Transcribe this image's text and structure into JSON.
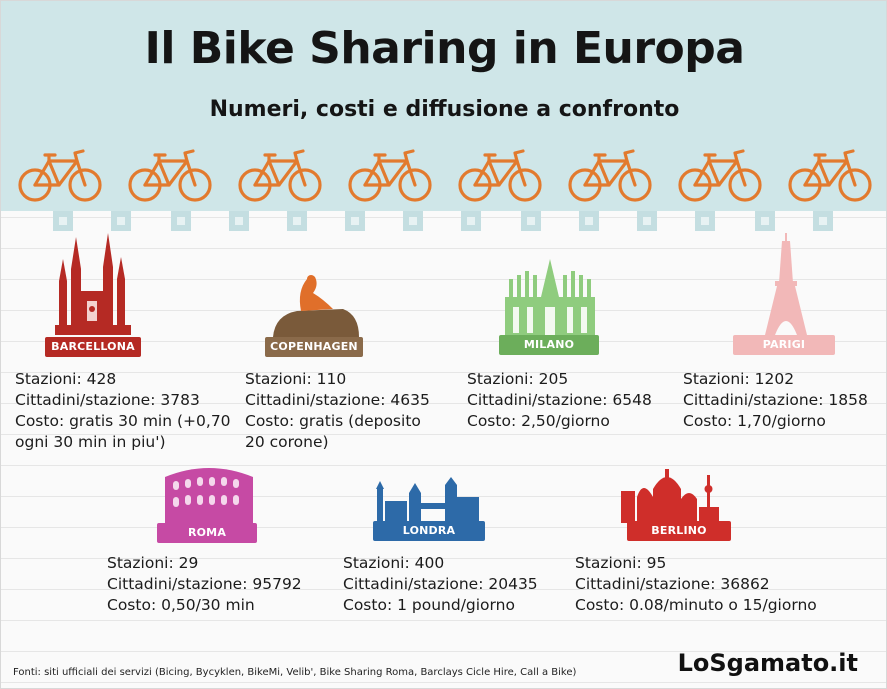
{
  "header": {
    "title": "Il Bike Sharing in Europa",
    "subtitle": "Numeri, costi e diffusione a confronto"
  },
  "colors": {
    "header_bg": "#cfe6e8",
    "bike": "#e27a2e",
    "barcellona": "#b52a24",
    "copenhagen": "#8a6a4a",
    "milano": "#6cae5b",
    "parigi": "#f2b8b8",
    "roma": "#c64aa4",
    "londra": "#2d6aa8",
    "berlino": "#cf2e2a"
  },
  "cities": [
    {
      "name": "BARCELLONA",
      "stazioni": "Stazioni: 428",
      "cittadini": "Cittadini/stazione: 3783",
      "costo": "Costo: gratis 30 min (+0,70",
      "costo2": "ogni 30 min in piu')"
    },
    {
      "name": "COPENHAGEN",
      "stazioni": "Stazioni: 110",
      "cittadini": "Cittadini/stazione: 4635",
      "costo": "Costo: gratis (deposito",
      "costo2": "20 corone)"
    },
    {
      "name": "MILANO",
      "stazioni": "Stazioni: 205",
      "cittadini": "Cittadini/stazione: 6548",
      "costo": "Costo: 2,50/giorno"
    },
    {
      "name": "PARIGI",
      "stazioni": "Stazioni: 1202",
      "cittadini": "Cittadini/stazione: 1858",
      "costo": "Costo: 1,70/giorno"
    },
    {
      "name": "ROMA",
      "stazioni": "Stazioni: 29",
      "cittadini": "Cittadini/stazione: 95792",
      "costo": "Costo: 0,50/30 min"
    },
    {
      "name": "LONDRA",
      "stazioni": "Stazioni: 400",
      "cittadini": "Cittadini/stazione: 20435",
      "costo": "Costo: 1 pound/giorno"
    },
    {
      "name": "BERLINO",
      "stazioni": "Stazioni: 95",
      "cittadini": "Cittadini/stazione: 36862",
      "costo": "Costo: 0.08/minuto o 15/giorno"
    }
  ],
  "footer": {
    "sources": "Fonti: siti ufficiali dei servizi (Bicing, Bycyklen, BikeMi, Velib', Bike Sharing Roma, Barclays Cicle Hire, Call a Bike)",
    "brand": "LoSgamato.it"
  }
}
